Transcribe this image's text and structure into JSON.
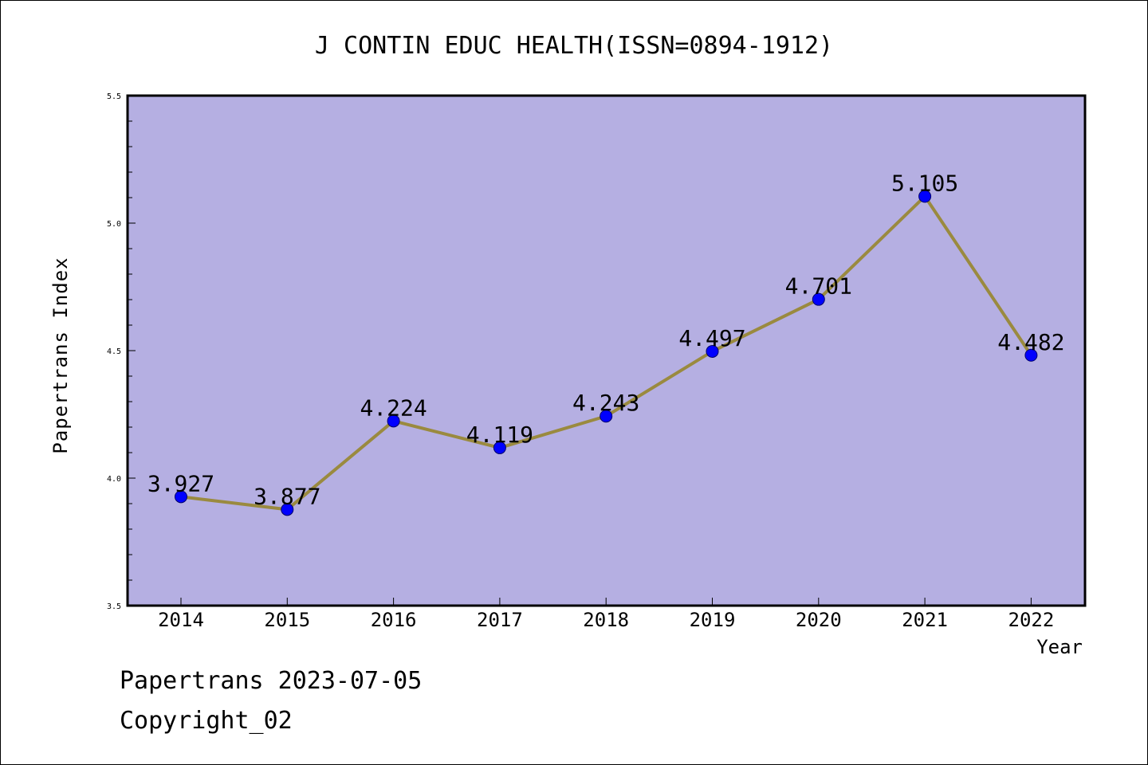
{
  "chart_data": {
    "type": "line",
    "title": "J CONTIN EDUC HEALTH(ISSN=0894-1912)",
    "xlabel": "Year",
    "ylabel": "Papertrans Index",
    "categories": [
      "2014",
      "2015",
      "2016",
      "2017",
      "2018",
      "2019",
      "2020",
      "2021",
      "2022"
    ],
    "values": [
      3.927,
      3.877,
      4.224,
      4.119,
      4.243,
      4.497,
      4.701,
      5.105,
      4.482
    ],
    "data_labels": [
      "3.927",
      "3.877",
      "4.224",
      "4.119",
      "4.243",
      "4.497",
      "4.701",
      "5.105",
      "4.482"
    ],
    "ylim": [
      3.5,
      5.5
    ],
    "yticks": [
      "3.5",
      "4.0",
      "4.5",
      "5.0",
      "5.5"
    ],
    "grid": false,
    "legend": "none",
    "colors": {
      "plot_background": "#b5afe2",
      "line": "#9a8a3f",
      "marker": "#0000ff"
    }
  },
  "footer": {
    "line1": "Papertrans 2023-07-05",
    "line2": "Copyright_02"
  }
}
